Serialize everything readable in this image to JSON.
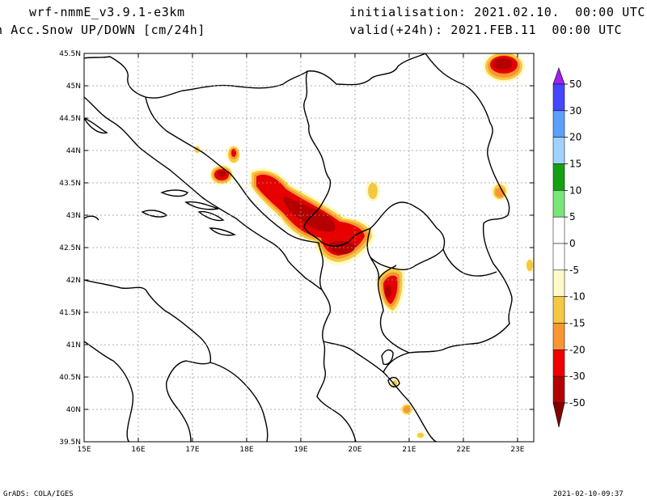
{
  "header": {
    "model": "wrf-nmmE_v3.9.1-e3km",
    "variable": "n Acc.Snow UP/DOWN [cm/24h]",
    "init": "initialisation: 2021.02.10.  00:00 UTC",
    "valid": "valid(+24h): 2021.FEB.11  00:00 UTC"
  },
  "footer": {
    "credit": "GrADS: COLA/IGES",
    "timestamp": "2021-02-10-09:37"
  },
  "map": {
    "lon_range": [
      15,
      23.3
    ],
    "lat_range": [
      39.5,
      45.5
    ],
    "lon_ticks": [
      "15E",
      "16E",
      "17E",
      "18E",
      "19E",
      "20E",
      "21E",
      "22E",
      "23E"
    ],
    "lat_ticks": [
      "39.5N",
      "40N",
      "40.5N",
      "41N",
      "41.5N",
      "42N",
      "42.5N",
      "43N",
      "43.5N",
      "44N",
      "44.5N",
      "45N",
      "45.5N"
    ]
  },
  "colorbar": {
    "labels": [
      "50",
      "30",
      "20",
      "15",
      "10",
      "5",
      "0",
      "-5",
      "-10",
      "-15",
      "-20",
      "-30",
      "-50"
    ],
    "colors": [
      "#6e6eff",
      "#5aa0ff",
      "#a0d2ff",
      "#14a014",
      "#78e678",
      "#ffffff",
      "#ffffff",
      "#fffac8",
      "#f5c841",
      "#fa9632",
      "#f00000",
      "#b40000",
      "#820000"
    ],
    "top_arrow_color": "#a020f0",
    "bottom_arrow_color": "#820000"
  }
}
